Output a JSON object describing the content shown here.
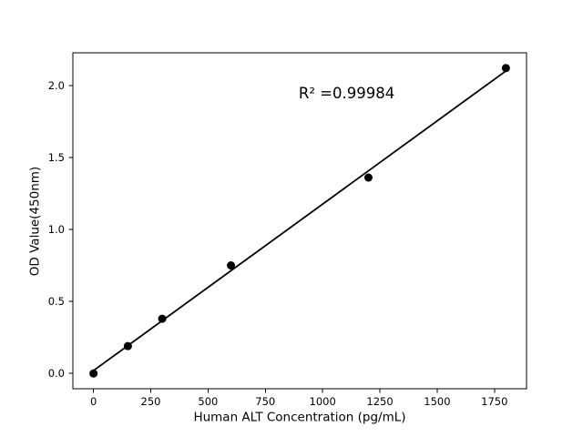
{
  "figure": {
    "background": "#ffffff",
    "foreground": "#000000"
  },
  "chart_data": {
    "type": "scatter",
    "title": "",
    "xlabel": "Human ALT Concentration (pg/mL)",
    "ylabel": "OD Value(450nm)",
    "annotation": {
      "text": "R² =0.99984",
      "x": 1105,
      "y": 1.94
    },
    "points": {
      "x": [
        0,
        150,
        300,
        600,
        1200,
        1800
      ],
      "y": [
        0.0,
        0.19,
        0.38,
        0.75,
        1.36,
        2.12
      ]
    },
    "fit_line": {
      "x": [
        0,
        1800
      ],
      "y": [
        0.02,
        2.1
      ]
    },
    "xticks": {
      "values": [
        0,
        250,
        500,
        750,
        1000,
        1250,
        1500,
        1750
      ],
      "labels": [
        "0",
        "250",
        "500",
        "750",
        "1000",
        "1250",
        "1500",
        "1750"
      ]
    },
    "yticks": {
      "values": [
        0.0,
        0.5,
        1.0,
        1.5,
        2.0
      ],
      "labels": [
        "0.0",
        "0.5",
        "1.0",
        "1.5",
        "2.0"
      ]
    },
    "xlim": [
      -90,
      1890
    ],
    "ylim": [
      -0.106,
      2.226
    ],
    "grid": false,
    "legend": null,
    "point_color": "#000000",
    "line_color": "#000000",
    "axis_color": "#000000"
  }
}
